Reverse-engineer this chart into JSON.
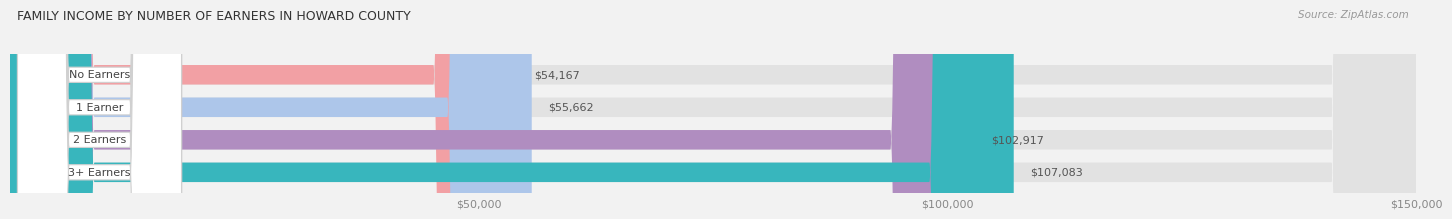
{
  "title": "FAMILY INCOME BY NUMBER OF EARNERS IN HOWARD COUNTY",
  "source": "Source: ZipAtlas.com",
  "categories": [
    "No Earners",
    "1 Earner",
    "2 Earners",
    "3+ Earners"
  ],
  "values": [
    54167,
    55662,
    102917,
    107083
  ],
  "bar_colors": [
    "#f2a0a4",
    "#adc6ea",
    "#b08dc0",
    "#38b6bd"
  ],
  "value_labels": [
    "$54,167",
    "$55,662",
    "$102,917",
    "$107,083"
  ],
  "xlim_min": 0,
  "xlim_max": 150000,
  "xticks": [
    50000,
    100000,
    150000
  ],
  "xtick_labels": [
    "$50,000",
    "$100,000",
    "$150,000"
  ],
  "background_color": "#f2f2f2",
  "bar_bg_color": "#e2e2e2",
  "bar_height": 0.6,
  "title_fontsize": 9,
  "label_fontsize": 8,
  "value_fontsize": 8,
  "tick_fontsize": 8,
  "source_fontsize": 7.5
}
